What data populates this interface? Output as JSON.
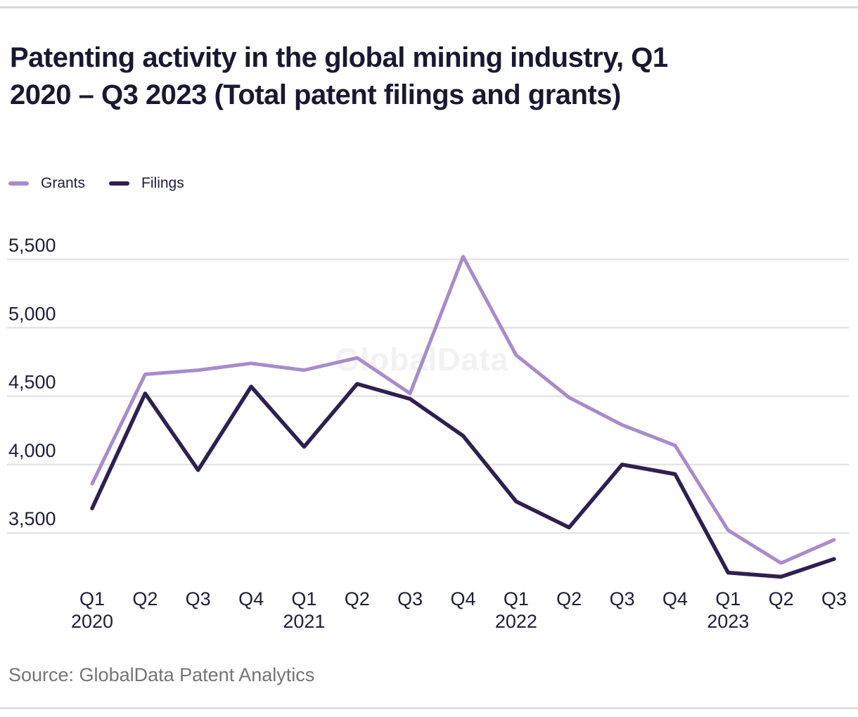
{
  "page": {
    "title_lines": [
      "Patenting activity in the global mining industry, Q1",
      "2020 – Q3 2023 (Total patent filings and grants)"
    ],
    "source": "Source: GlobalData Patent Analytics",
    "watermark": "GlobalData"
  },
  "legend": {
    "items": [
      {
        "label": "Grants",
        "color": "#a78cc9"
      },
      {
        "label": "Filings",
        "color": "#2f2050"
      }
    ]
  },
  "colors": {
    "grants_line": "#a78cc9",
    "filings_line": "#2f2050",
    "gridline": "#e4e4e4",
    "axis_text": "#1d1e38",
    "title_text": "#181931",
    "source_text": "#747474",
    "watermark_text": "#f2f2f2",
    "border": "#d9d9d9"
  },
  "chart_data": {
    "type": "line",
    "title": "Patenting activity in the global mining industry, Q1 2020 – Q3 2023 (Total patent filings and grants)",
    "categories": [
      "Q1 2020",
      "Q2 2020",
      "Q3 2020",
      "Q4 2020",
      "Q1 2021",
      "Q2 2021",
      "Q3 2021",
      "Q4 2021",
      "Q1 2022",
      "Q2 2022",
      "Q3 2022",
      "Q4 2022",
      "Q1 2023",
      "Q2 2023",
      "Q3 2023"
    ],
    "x_tick_labels": [
      "Q1",
      "Q2",
      "Q3",
      "Q4",
      "Q1",
      "Q2",
      "Q3",
      "Q4",
      "Q1",
      "Q2",
      "Q3",
      "Q4",
      "Q1",
      "Q2",
      "Q3"
    ],
    "year_labels": [
      {
        "text": "2020",
        "index": 0
      },
      {
        "text": "2021",
        "index": 4
      },
      {
        "text": "2022",
        "index": 8
      },
      {
        "text": "2023",
        "index": 12
      }
    ],
    "series": [
      {
        "name": "Grants",
        "color": "#a78cc9",
        "values": [
          3860,
          4660,
          4690,
          4740,
          4690,
          4780,
          4520,
          5520,
          4800,
          4490,
          4290,
          4140,
          3520,
          3280,
          3450
        ]
      },
      {
        "name": "Filings",
        "color": "#2f2050",
        "values": [
          3680,
          4520,
          3960,
          4570,
          4130,
          4590,
          4480,
          4210,
          3730,
          3540,
          4000,
          3930,
          3210,
          3180,
          3310
        ]
      }
    ],
    "yticks": [
      3500,
      4000,
      4500,
      5000,
      5500
    ],
    "ylim": [
      3100,
      5700
    ],
    "grid": "horizontal",
    "legend_position": "top-left",
    "xlabel": "",
    "ylabel": ""
  }
}
